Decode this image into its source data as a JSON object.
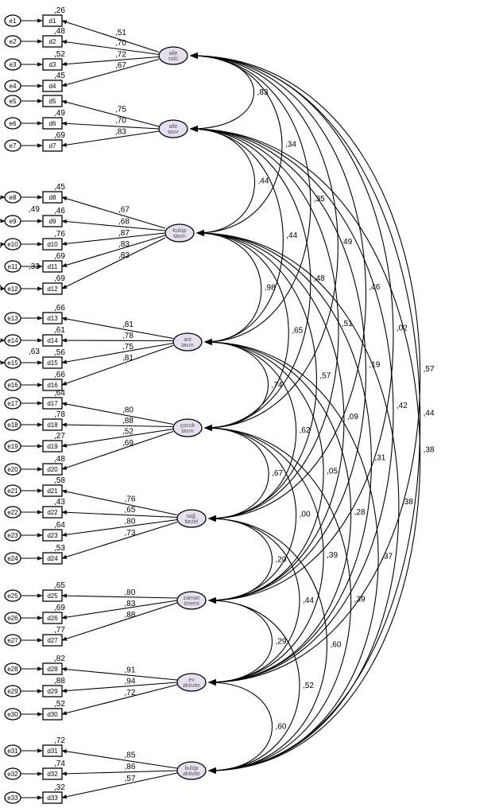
{
  "factors": [
    {
      "id": "F1",
      "label_lines": [
        "aile",
        "rolü"
      ],
      "cov": [
        {
          "to": "F2",
          "value": ",83"
        },
        {
          "to": "F3",
          "value": ",34"
        },
        {
          "to": "F4",
          "value": ",35"
        },
        {
          "to": "F5",
          "value": ",49"
        },
        {
          "to": "F6",
          "value": ",46"
        },
        {
          "to": "F7",
          "value": ",02"
        },
        {
          "to": "F8",
          "value": ",57"
        },
        {
          "to": "F9",
          "value": ",44"
        }
      ],
      "items": [
        {
          "error": "e1",
          "item": "d1",
          "loading": ",51",
          "r2": ",26"
        },
        {
          "error": "e2",
          "item": "d2",
          "loading": ",70",
          "r2": ",48"
        },
        {
          "error": "e3",
          "item": "d3",
          "loading": ",72",
          "r2": ",52"
        },
        {
          "error": "e4",
          "item": "d4",
          "loading": ",67",
          "r2": ",45"
        }
      ]
    },
    {
      "id": "F2",
      "label_lines": [
        "aile",
        "tavır"
      ],
      "cov": [
        {
          "to": "F3",
          "value": ",44"
        },
        {
          "to": "F4",
          "value": ",44"
        },
        {
          "to": "F5",
          "value": ",48"
        },
        {
          "to": "F6",
          "value": ",51"
        },
        {
          "to": "F7",
          "value": ",19"
        },
        {
          "to": "F8",
          "value": ",42"
        },
        {
          "to": "F9",
          "value": ",38"
        }
      ],
      "items": [
        {
          "error": "e5",
          "item": "d5",
          "loading": ",75",
          "r2": ""
        },
        {
          "error": "e6",
          "item": "d6",
          "loading": ",70",
          "r2": ",49"
        },
        {
          "error": "e7",
          "item": "d7",
          "loading": ",83",
          "r2": ",69"
        }
      ]
    },
    {
      "id": "F3",
      "label_lines": [
        "kulüp",
        "tavırı"
      ],
      "cov": [
        {
          "to": "F4",
          "value": ",98"
        },
        {
          "to": "F5",
          "value": ",65"
        },
        {
          "to": "F6",
          "value": ",57"
        },
        {
          "to": "F7",
          "value": ",09"
        },
        {
          "to": "F8",
          "value": ",31"
        },
        {
          "to": "F9",
          "value": ",38"
        }
      ],
      "items": [
        {
          "error": "e8",
          "item": "d8",
          "loading": ",67",
          "r2": ",45"
        },
        {
          "error": "e9",
          "item": "d9",
          "loading": ",68",
          "r2": ",46"
        },
        {
          "error": "e10",
          "item": "d10",
          "loading": ",87",
          "r2": ",76"
        },
        {
          "error": "e11",
          "item": "d11",
          "loading": ",83",
          "r2": ",69"
        },
        {
          "error": "e12",
          "item": "d12",
          "loading": ",83",
          "r2": ",69"
        }
      ]
    },
    {
      "id": "F4",
      "label_lines": [
        "ant",
        "tavırı"
      ],
      "cov": [
        {
          "to": "F5",
          "value": ",74"
        },
        {
          "to": "F6",
          "value": ",62"
        },
        {
          "to": "F7",
          "value": ",05"
        },
        {
          "to": "F8",
          "value": ",28"
        },
        {
          "to": "F9",
          "value": ",37"
        }
      ],
      "items": [
        {
          "error": "e13",
          "item": "d13",
          "loading": ",81",
          "r2": ",66"
        },
        {
          "error": "e14",
          "item": "d14",
          "loading": ",78",
          "r2": ",61"
        },
        {
          "error": "e15",
          "item": "d15",
          "loading": ",75",
          "r2": ",56"
        },
        {
          "error": "e16",
          "item": "d16",
          "loading": ",81",
          "r2": ",66"
        }
      ]
    },
    {
      "id": "F5",
      "label_lines": [
        "çocuk",
        "tavırı"
      ],
      "cov": [
        {
          "to": "F6",
          "value": ",67"
        },
        {
          "to": "F7",
          "value": ",00"
        },
        {
          "to": "F8",
          "value": ",39"
        },
        {
          "to": "F9",
          "value": ",39"
        }
      ],
      "items": [
        {
          "error": "e17",
          "item": "d17",
          "loading": ",80",
          "r2": ",64"
        },
        {
          "error": "e18",
          "item": "d18",
          "loading": ",88",
          "r2": ",78"
        },
        {
          "error": "e19",
          "item": "d19",
          "loading": ",52",
          "r2": ",27"
        },
        {
          "error": "e20",
          "item": "d20",
          "loading": ",69",
          "r2": ",48"
        }
      ]
    },
    {
      "id": "F6",
      "label_lines": [
        "sağ.",
        "bezel"
      ],
      "cov": [
        {
          "to": "F7",
          "value": ",20"
        },
        {
          "to": "F8",
          "value": ",44"
        },
        {
          "to": "F9",
          "value": ",60"
        }
      ],
      "items": [
        {
          "error": "e21",
          "item": "d21",
          "loading": ",76",
          "r2": ",58"
        },
        {
          "error": "e22",
          "item": "d22",
          "loading": ",65",
          "r2": ",43"
        },
        {
          "error": "e23",
          "item": "d23",
          "loading": ",80",
          "r2": ",64"
        },
        {
          "error": "e24",
          "item": "d24",
          "loading": ",73",
          "r2": ",53"
        }
      ]
    },
    {
      "id": "F7",
      "label_lines": [
        "zaman",
        "önemi"
      ],
      "cov": [
        {
          "to": "F8",
          "value": ",29"
        },
        {
          "to": "F9",
          "value": ",52"
        }
      ],
      "items": [
        {
          "error": "e25",
          "item": "d25",
          "loading": ",80",
          "r2": ",65"
        },
        {
          "error": "e26",
          "item": "d26",
          "loading": ",83",
          "r2": ",69"
        },
        {
          "error": "e27",
          "item": "d27",
          "loading": ",88",
          "r2": ",77"
        }
      ]
    },
    {
      "id": "F8",
      "label_lines": [
        "ev",
        "aktivite"
      ],
      "cov": [
        {
          "to": "F9",
          "value": ",60"
        }
      ],
      "items": [
        {
          "error": "e28",
          "item": "d28",
          "loading": ",91",
          "r2": ",82"
        },
        {
          "error": "e29",
          "item": "d29",
          "loading": ",94",
          "r2": ",88"
        },
        {
          "error": "e30",
          "item": "d30",
          "loading": ",72",
          "r2": ",52"
        }
      ]
    },
    {
      "id": "F9",
      "label_lines": [
        "kulüp",
        "aktivite"
      ],
      "cov": [],
      "items": [
        {
          "error": "e31",
          "item": "d31",
          "loading": ",85",
          "r2": ",72"
        },
        {
          "error": "e32",
          "item": "d32",
          "loading": ",86",
          "r2": ",74"
        },
        {
          "error": "e33",
          "item": "d33",
          "loading": ",57",
          "r2": ",32"
        }
      ]
    }
  ],
  "error_covariances": [
    {
      "from": "e8",
      "to": "e9",
      "value": ",49"
    },
    {
      "from": "e10",
      "to": "e12",
      "value": ",33"
    },
    {
      "from": "e14",
      "to": "e15",
      "value": ",63"
    }
  ],
  "colors": {
    "factor_fill": "#e6dff0",
    "line": "#000000"
  }
}
